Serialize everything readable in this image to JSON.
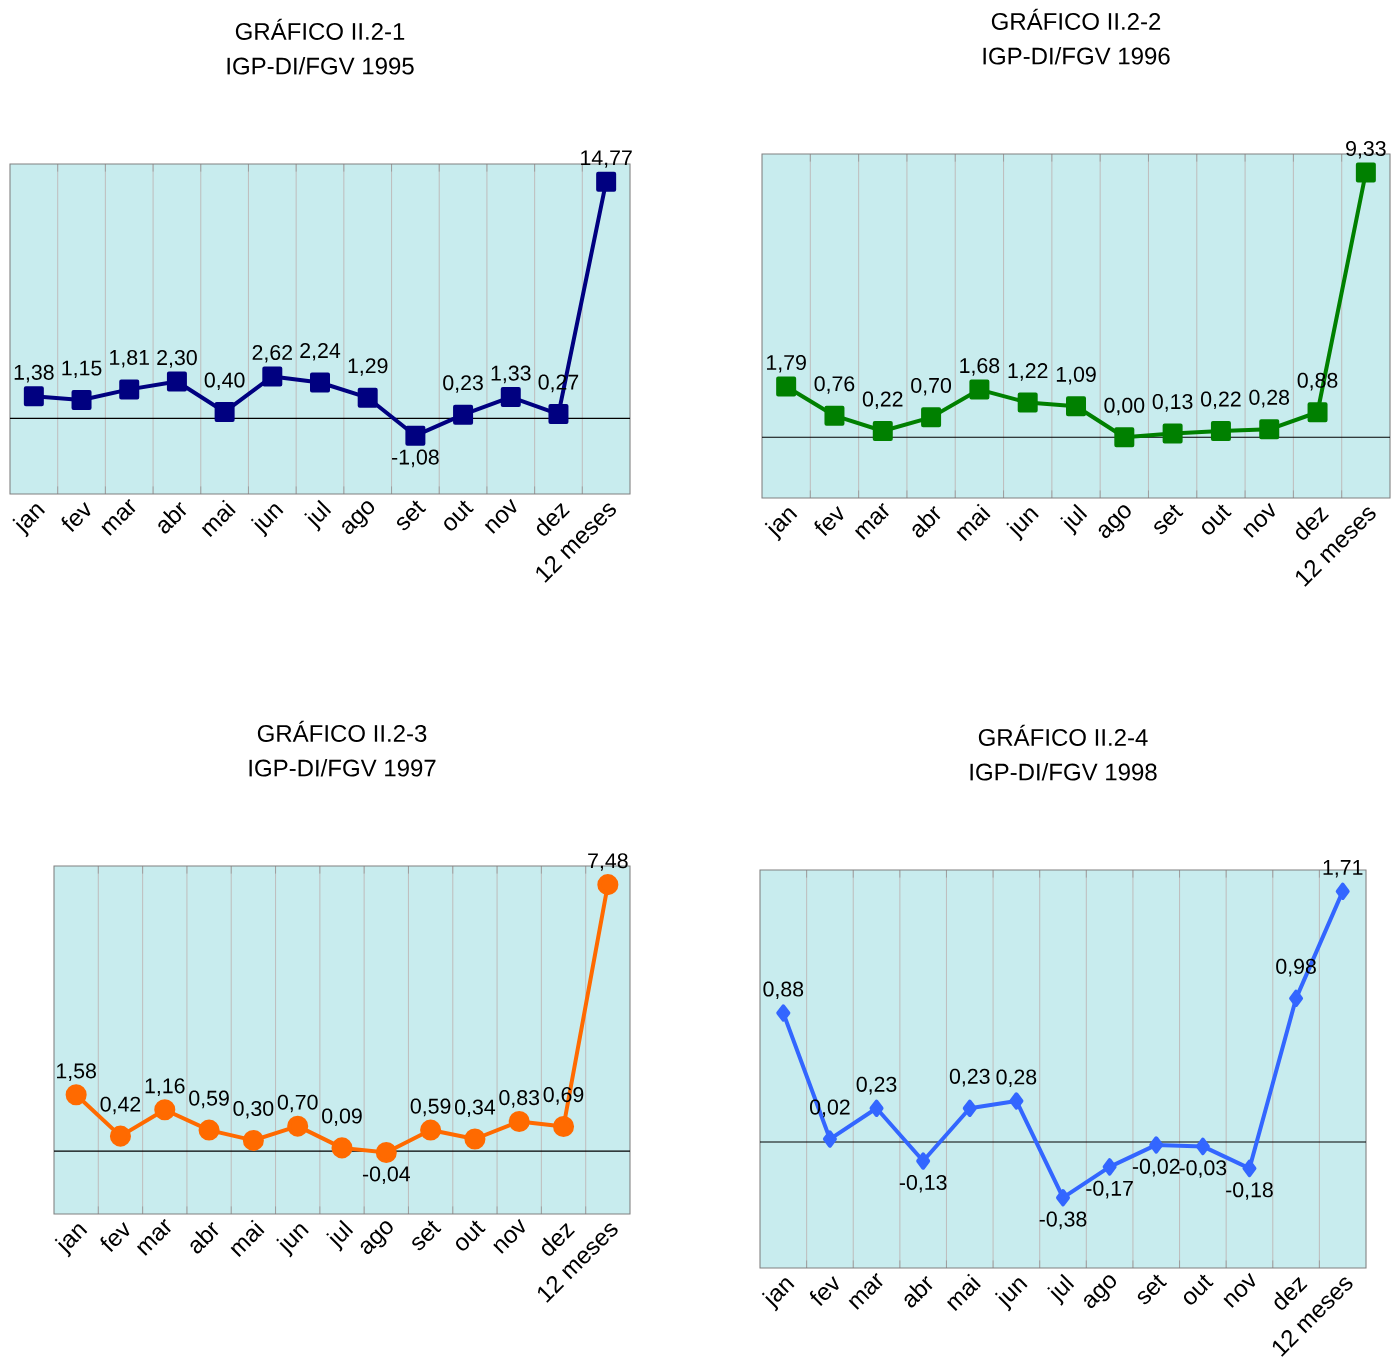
{
  "chart_data": [
    {
      "type": "line",
      "title": "GRÁFICO II.2-1",
      "subtitle": "IGP-DI/FGV 1995",
      "categories": [
        "jan",
        "fev",
        "mar",
        "abr",
        "mai",
        "jun",
        "jul",
        "ago",
        "set",
        "out",
        "nov",
        "dez",
        "12 meses"
      ],
      "tick_labels": "x",
      "grid": "x",
      "marker": "square",
      "line_style": "solid",
      "series": [
        {
          "color": "#000080",
          "values": [
            1.38,
            1.15,
            1.81,
            2.3,
            0.4,
            2.62,
            2.24,
            1.29,
            -1.08,
            0.23,
            1.33,
            0.27,
            14.77
          ],
          "value_labels": [
            "1,38",
            "1,15",
            "1,81",
            "2,30",
            "0,40",
            "2,62",
            "2,24",
            "1,29",
            "-1,08",
            "0,23",
            "1,33",
            "0,27",
            "14,77"
          ]
        }
      ]
    },
    {
      "type": "line",
      "title": "GRÁFICO II.2-2",
      "subtitle": "IGP-DI/FGV 1996",
      "categories": [
        "jan",
        "fev",
        "mar",
        "abr",
        "mai",
        "jun",
        "jul",
        "ago",
        "set",
        "out",
        "nov",
        "dez",
        "12 meses"
      ],
      "tick_labels": "x",
      "grid": "x",
      "marker": "square",
      "line_style": "solid",
      "series": [
        {
          "color": "#008000",
          "values": [
            1.79,
            0.76,
            0.22,
            0.7,
            1.68,
            1.22,
            1.09,
            0.0,
            0.13,
            0.22,
            0.28,
            0.88,
            9.33
          ],
          "value_labels": [
            "1,79",
            "0,76",
            "0,22",
            "0,70",
            "1,68",
            "1,22",
            "1,09",
            "0,00",
            "0,13",
            "0,22",
            "0,28",
            "0,88",
            "9,33"
          ]
        }
      ]
    },
    {
      "type": "line",
      "title": "GRÁFICO II.2-3",
      "subtitle": "IGP-DI/FGV 1997",
      "categories": [
        "jan",
        "fev",
        "mar",
        "abr",
        "mai",
        "jun",
        "jul",
        "ago",
        "set",
        "out",
        "nov",
        "dez",
        "12 meses"
      ],
      "tick_labels": "x",
      "grid": "x",
      "marker": "circle",
      "line_style": "solid",
      "series": [
        {
          "color": "#ff6a00",
          "values": [
            1.58,
            0.42,
            1.16,
            0.59,
            0.3,
            0.7,
            0.09,
            -0.04,
            0.59,
            0.34,
            0.83,
            0.69,
            7.48
          ],
          "value_labels": [
            "1,58",
            "0,42",
            "1,16",
            "0,59",
            "0,30",
            "0,70",
            "0,09",
            "-0,04",
            "0,59",
            "0,34",
            "0,83",
            "0,69",
            "7,48"
          ]
        }
      ]
    },
    {
      "type": "line",
      "title": "GRÁFICO II.2-4",
      "subtitle": "IGP-DI/FGV 1998",
      "categories": [
        "jan",
        "fev",
        "mar",
        "abr",
        "mai",
        "jun",
        "jul",
        "ago",
        "set",
        "out",
        "nov",
        "dez",
        "12 meses"
      ],
      "tick_labels": "x",
      "grid": "x",
      "marker": "diamond",
      "line_style": "solid",
      "series": [
        {
          "color": "#3366ff",
          "values": [
            0.88,
            0.02,
            0.23,
            -0.13,
            0.23,
            0.28,
            -0.38,
            -0.17,
            -0.02,
            -0.03,
            -0.18,
            0.98,
            1.71
          ],
          "value_labels": [
            "0,88",
            "0,02",
            "0,23",
            "-0,13",
            "0,23",
            "0,28",
            "-0,38",
            "-0,17",
            "-0,02",
            "-0,03",
            "-0,18",
            "0,98",
            "1,71"
          ]
        }
      ]
    }
  ]
}
